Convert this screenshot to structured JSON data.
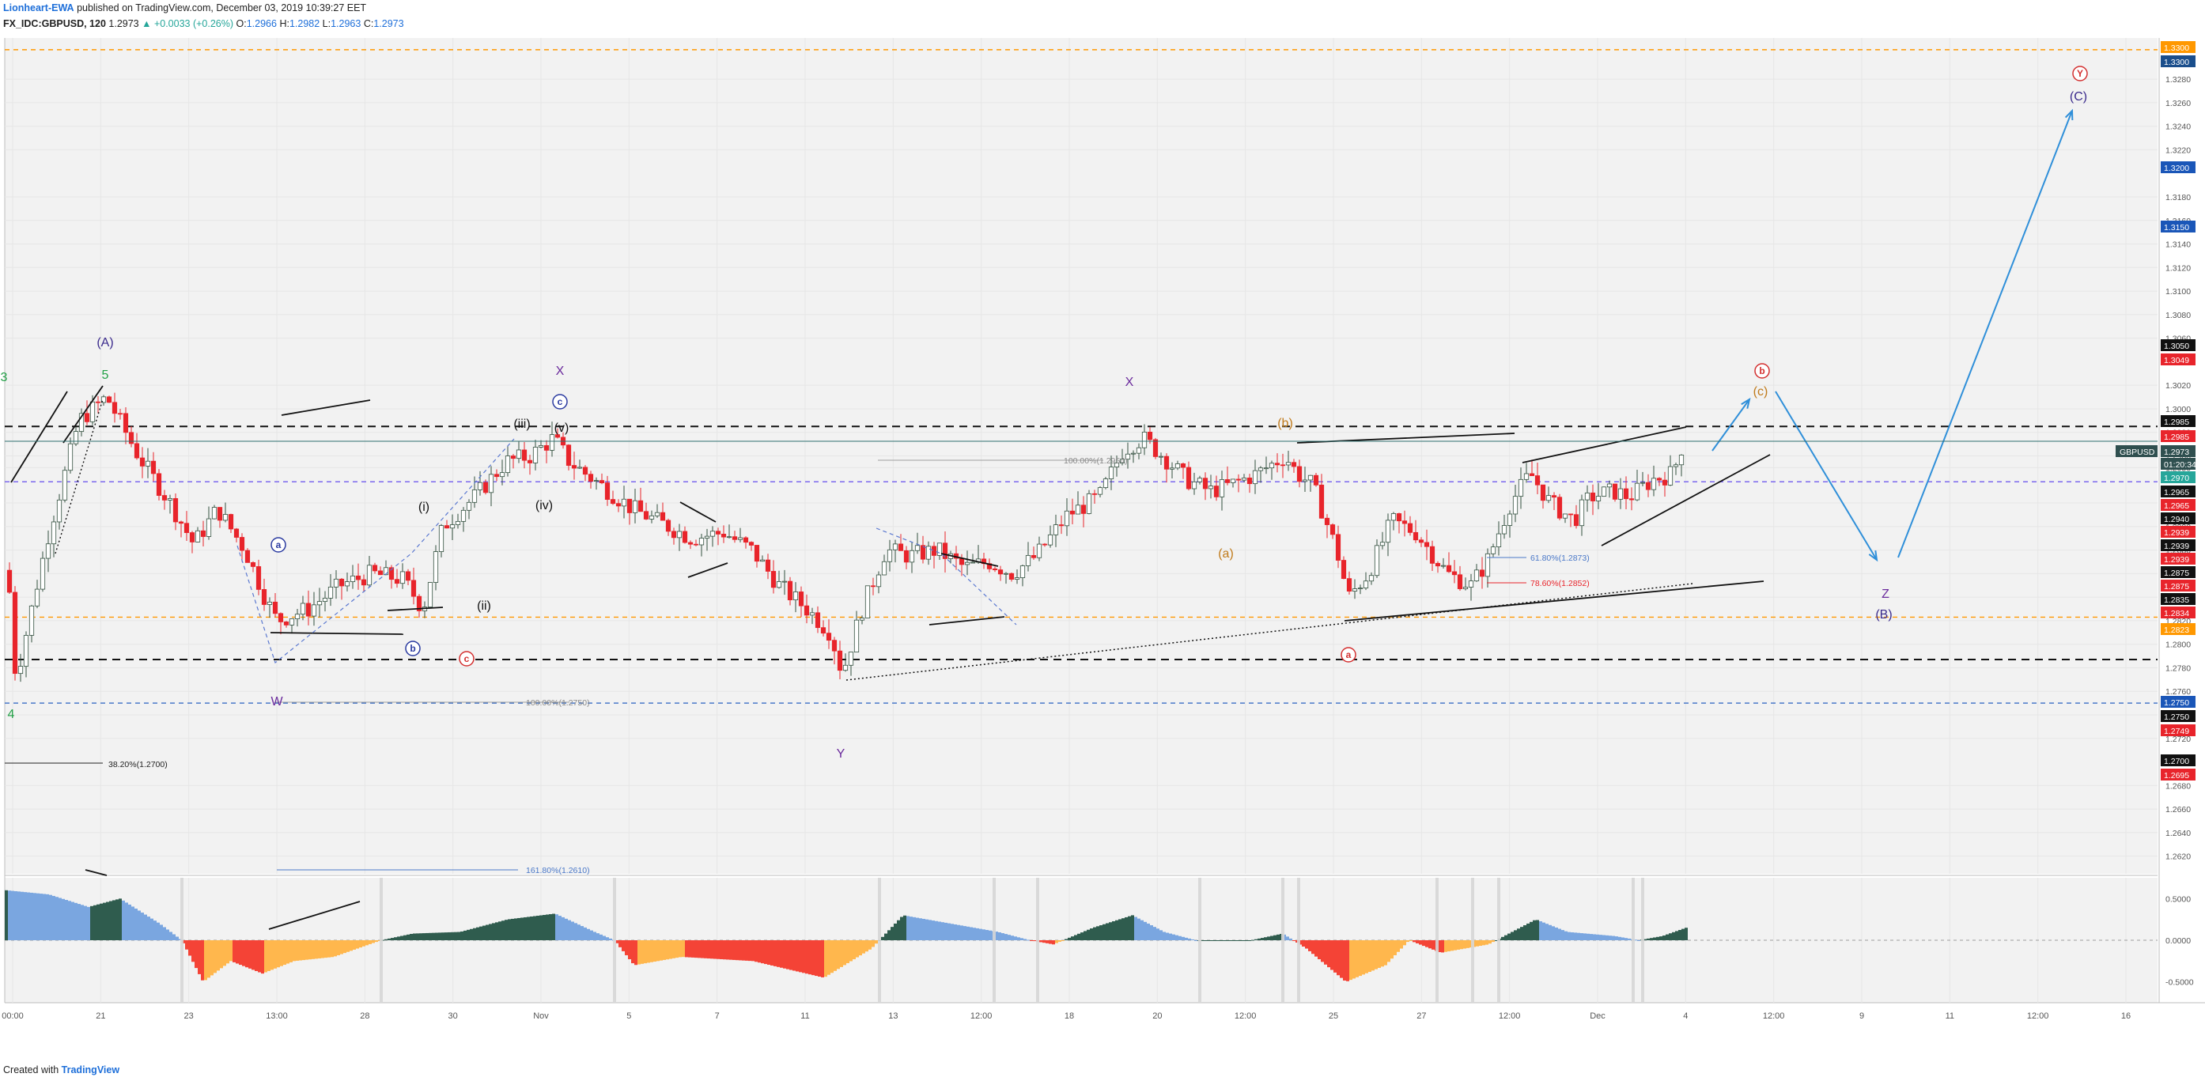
{
  "header": {
    "author": "Lionheart-EWA",
    "published": "published on TradingView.com, December 03, 2019 10:39:27 EET",
    "symbol": "FX_IDC:GBPUSD, 120",
    "last": "1.2973",
    "change": "▲ +0.0033 (+0.26%)",
    "ohlc_o_label": "O:",
    "ohlc_o": "1.2966",
    "ohlc_h_label": "H:",
    "ohlc_h": "1.2982",
    "ohlc_l_label": "L:",
    "ohlc_l": "1.2963",
    "ohlc_c_label": "C:",
    "ohlc_c": "1.2973"
  },
  "footer": {
    "created_with": "Created with",
    "brand": "TradingView"
  },
  "colors": {
    "up": "#33503f",
    "down": "#e8242b",
    "osc_pos_strong": "#2f5c4e",
    "osc_pos_weak": "#7aa6e0",
    "osc_neg_strong": "#f44336",
    "osc_neg_weak": "#ffb74d",
    "grid": "#e6e6e6",
    "bg": "#f2f2f2"
  },
  "chart_data": {
    "type": "candlestick",
    "symbol": "GBPUSD",
    "timeframe": "120",
    "ylim": [
      1.2605,
      1.3315
    ],
    "y_ticks": [
      "1.3280",
      "1.3260",
      "1.3240",
      "1.3220",
      "1.3180",
      "1.3160",
      "1.3140",
      "1.3120",
      "1.3100",
      "1.3080",
      "1.3060",
      "1.3020",
      "1.3000",
      "1.2980",
      "1.2960",
      "1.2950",
      "1.2920",
      "1.2900",
      "1.2880",
      "1.2860",
      "1.2840",
      "1.2820",
      "1.2800",
      "1.2780",
      "1.2760",
      "1.2740",
      "1.2720",
      "1.2680",
      "1.2660",
      "1.2640",
      "1.2620"
    ],
    "x_ticks": [
      "00:00",
      "21",
      "23",
      "13:00",
      "28",
      "30",
      "Nov",
      "5",
      "7",
      "11",
      "13",
      "12:00",
      "18",
      "20",
      "12:00",
      "25",
      "27",
      "12:00",
      "Dec",
      "4",
      "12:00",
      "9",
      "11",
      "12:00",
      "16"
    ],
    "price_badges": [
      {
        "label": "1.3300",
        "color": "#ff9800"
      },
      {
        "label": "1.3300",
        "color": "#1a4e8c"
      },
      {
        "label": "1.3200",
        "color": "#1a56b8"
      },
      {
        "label": "1.3150",
        "color": "#1a56b8"
      },
      {
        "label": "1.3050",
        "color": "#111111"
      },
      {
        "label": "1.3049",
        "color": "#e8242b"
      },
      {
        "label": "1.2985",
        "color": "#111111"
      },
      {
        "label": "1.2985",
        "color": "#e8242b"
      },
      {
        "label": "1.2973",
        "color": "#2f4f4f"
      },
      {
        "label": "01:20:34",
        "color": "#2f4f4f"
      },
      {
        "label": "1.2970",
        "color": "#26a69a"
      },
      {
        "label": "1.2965",
        "color": "#111111"
      },
      {
        "label": "1.2965",
        "color": "#e8242b"
      },
      {
        "label": "1.2940",
        "color": "#111111"
      },
      {
        "label": "1.2939",
        "color": "#e8242b"
      },
      {
        "label": "1.2939",
        "color": "#111111"
      },
      {
        "label": "1.2939",
        "color": "#e8242b"
      },
      {
        "label": "1.2875",
        "color": "#111111"
      },
      {
        "label": "1.2875",
        "color": "#e8242b"
      },
      {
        "label": "1.2835",
        "color": "#111111"
      },
      {
        "label": "1.2834",
        "color": "#e8242b"
      },
      {
        "label": "1.2823",
        "color": "#ff9800"
      },
      {
        "label": "1.2750",
        "color": "#1a56b8"
      },
      {
        "label": "1.2750",
        "color": "#111111"
      },
      {
        "label": "1.2749",
        "color": "#e8242b"
      },
      {
        "label": "1.2700",
        "color": "#111111"
      },
      {
        "label": "1.2695",
        "color": "#e8242b"
      }
    ],
    "symbol_badge": "GBPUSD",
    "horizontal_lines": [
      {
        "price": 1.3305,
        "style": "dashed",
        "color": "#ff9800"
      },
      {
        "price": 1.2985,
        "style": "dashed",
        "color": "#111111"
      },
      {
        "price": 1.2938,
        "style": "dashed",
        "color": "#7b68ee"
      },
      {
        "price": 1.2823,
        "style": "dashed",
        "color": "#ff9800"
      },
      {
        "price": 1.2787,
        "style": "dashed",
        "color": "#111111"
      },
      {
        "price": 1.275,
        "style": "dashed",
        "color": "#4a78c8"
      }
    ],
    "fib_labels": [
      {
        "text": "100.00%(1.2954)",
        "color": "#888888"
      },
      {
        "text": "100.00%(1.2750)",
        "color": "#888888"
      },
      {
        "text": "38.20%(1.2700)",
        "color": "#222222"
      },
      {
        "text": "161.80%(1.2610)",
        "color": "#4a78c8"
      },
      {
        "text": "61.80%(1.2873)",
        "color": "#4a78c8"
      },
      {
        "text": "78.60%(1.2852)",
        "color": "#e8242b"
      }
    ],
    "wave_labels": [
      {
        "text": "(A)",
        "color": "#3a2a8c"
      },
      {
        "text": "5",
        "color": "#22a046"
      },
      {
        "text": "4",
        "color": "#22a046"
      },
      {
        "text": "3",
        "color": "#22a046"
      },
      {
        "text": "X",
        "color": "#6a2a9c"
      },
      {
        "text": "X",
        "color": "#6a2a9c"
      },
      {
        "text": "W",
        "color": "#6a2a9c"
      },
      {
        "text": "Y",
        "color": "#6a2a9c"
      },
      {
        "text": "Z",
        "color": "#6a2a9c"
      },
      {
        "text": "(B)",
        "color": "#3a2a8c"
      },
      {
        "text": "(C)",
        "color": "#3a2a8c"
      },
      {
        "text": "Y",
        "color": "#d32f2f"
      },
      {
        "text": "(i)",
        "color": "#111111"
      },
      {
        "text": "(ii)",
        "color": "#111111"
      },
      {
        "text": "(iii)",
        "color": "#111111"
      },
      {
        "text": "(iv)",
        "color": "#111111"
      },
      {
        "text": "(v)",
        "color": "#111111"
      },
      {
        "text": "(a)",
        "color": "#c07a1a"
      },
      {
        "text": "(b)",
        "color": "#c07a1a"
      },
      {
        "text": "(c)",
        "color": "#c07a1a"
      },
      {
        "text": "a",
        "color": "#d32f2f"
      },
      {
        "text": "b",
        "color": "#d32f2f"
      },
      {
        "text": "c",
        "color": "#d32f2f"
      },
      {
        "text": "a",
        "color": "#2a3aa0"
      },
      {
        "text": "b",
        "color": "#2a3aa0"
      },
      {
        "text": "c",
        "color": "#2a3aa0"
      }
    ],
    "oscillator": {
      "y_ticks": [
        "0.5000",
        "0.0000",
        "-0.5000"
      ],
      "ylim": [
        -0.75,
        0.75
      ]
    }
  }
}
